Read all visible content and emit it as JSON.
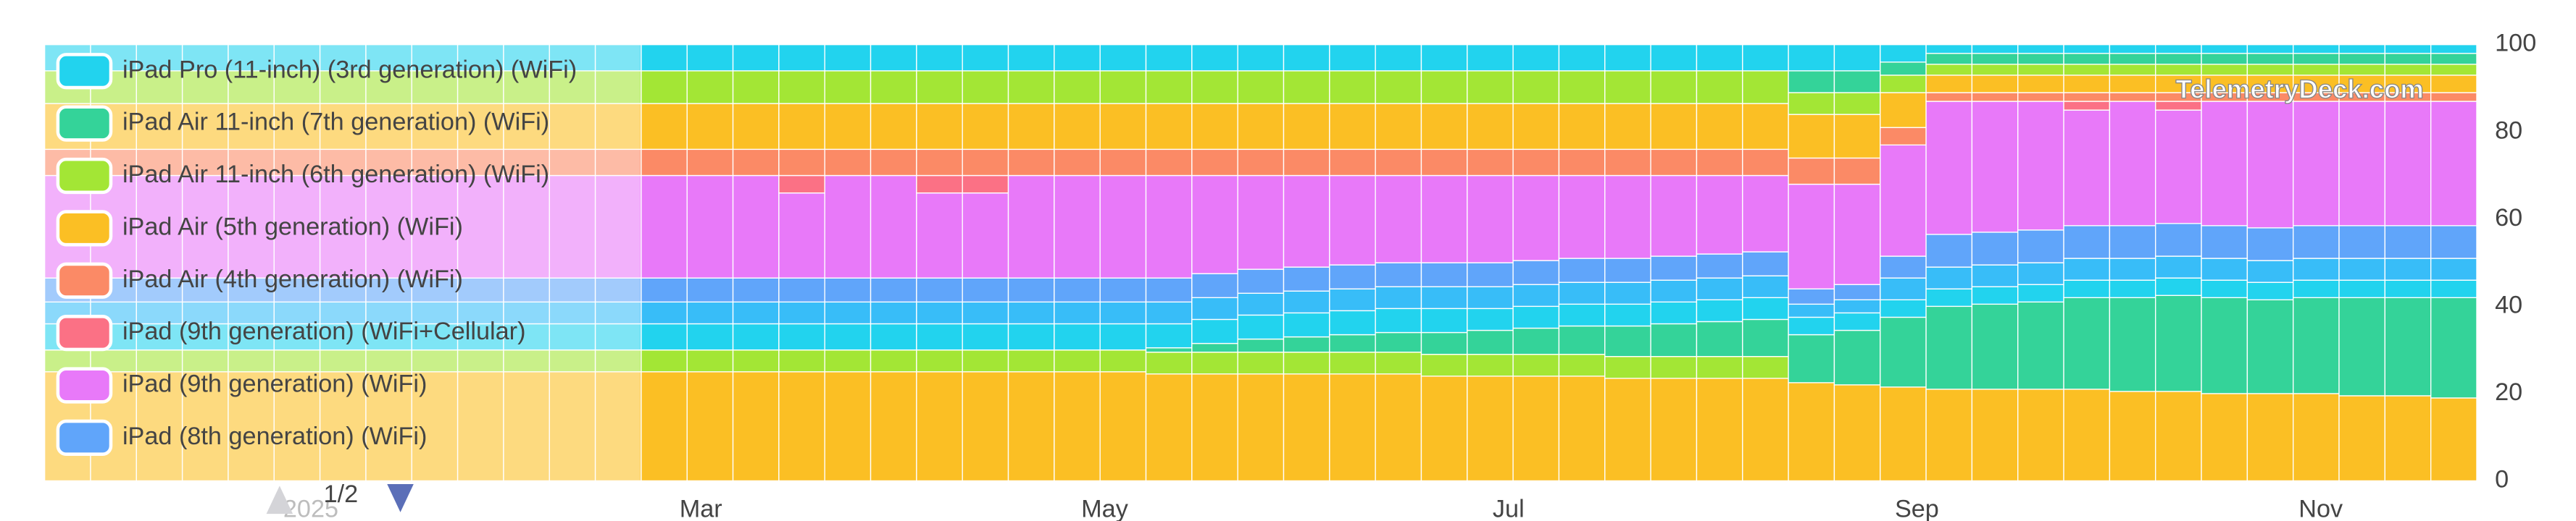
{
  "chart_data": {
    "type": "stacked_bar",
    "categories": [
      null,
      null,
      null,
      null,
      null,
      null,
      null,
      null,
      null,
      null,
      null,
      null,
      null,
      null,
      null,
      null,
      null,
      null,
      null,
      null,
      null,
      null,
      null,
      null,
      null,
      null,
      null,
      null,
      null,
      null,
      null,
      null,
      null,
      null,
      null,
      null,
      null,
      null,
      null,
      null,
      null,
      null,
      null,
      null,
      null,
      null,
      null,
      null,
      null,
      null,
      null,
      null,
      null
    ],
    "xlim": [
      0,
      53
    ],
    "xticks": [
      {
        "value": 5.8,
        "label": "2025"
      },
      {
        "value": 14.3,
        "label": "Mar"
      },
      {
        "value": 23.1,
        "label": "May"
      },
      {
        "value": 31.9,
        "label": "Jul"
      },
      {
        "value": 40.8,
        "label": "Sep"
      },
      {
        "value": 49.6,
        "label": "Nov"
      }
    ],
    "ylim": [
      0,
      100
    ],
    "yticks": [
      0,
      20,
      40,
      60,
      80,
      100
    ],
    "legend_page": "1/2",
    "watermark": "TelemetryDeck.com",
    "series": [
      {
        "name": "iPad Pro (11-inch) (3rd generation) (WiFi)",
        "color": "#22d3ee",
        "values": [
          6,
          6,
          6,
          6,
          6,
          6,
          6,
          6,
          6,
          6,
          6,
          6,
          6,
          6,
          6,
          6,
          6,
          6,
          6,
          6,
          6,
          6,
          6,
          6,
          6,
          6,
          6,
          6,
          6,
          6,
          6,
          6,
          6,
          6,
          6,
          6,
          6,
          6,
          6,
          6,
          4,
          2,
          2,
          2,
          2,
          2,
          2,
          2,
          2,
          2,
          2,
          2,
          2
        ]
      },
      {
        "name": "iPad Air 11-inch (7th generation) (WiFi)",
        "color": "#34d399",
        "values": [
          0,
          0,
          0,
          0,
          0,
          0,
          0,
          0,
          0,
          0,
          0,
          0,
          0,
          0,
          0,
          0,
          0,
          0,
          0,
          0,
          0,
          0,
          0,
          0,
          0,
          0,
          0,
          0,
          0,
          0,
          0,
          0,
          0,
          0,
          0,
          0,
          0,
          0,
          5,
          5,
          3,
          2.5,
          2.5,
          2.5,
          2.5,
          2.5,
          2.5,
          2.5,
          2.5,
          2.5,
          2.5,
          2.5,
          2.5
        ]
      },
      {
        "name": "iPad Air 11-inch (6th generation) (WiFi)",
        "color": "#a3e635",
        "values": [
          7.5,
          7.5,
          7.5,
          7.5,
          7.5,
          7.5,
          7.5,
          7.5,
          7.5,
          7.5,
          7.5,
          7.5,
          7.5,
          7.5,
          7.5,
          7.5,
          7.5,
          7.5,
          7.5,
          7.5,
          7.5,
          7.5,
          7.5,
          7.5,
          7.5,
          7.5,
          7.5,
          7.5,
          7.5,
          7.5,
          7.5,
          7.5,
          7.5,
          7.5,
          7.5,
          7.5,
          7.5,
          7.5,
          5,
          5,
          4,
          2.5,
          2.5,
          2.5,
          2.5,
          2.5,
          2.5,
          2.5,
          2.5,
          2.5,
          2.5,
          2.5,
          2.5
        ]
      },
      {
        "name": "iPad Air (5th generation) (WiFi)",
        "color": "#fbbf24",
        "values": [
          10.5,
          10.5,
          10.5,
          10.5,
          10.5,
          10.5,
          10.5,
          10.5,
          10.5,
          10.5,
          10.5,
          10.5,
          10.5,
          10.5,
          10.5,
          10.5,
          10.5,
          10.5,
          10.5,
          10.5,
          10.5,
          10.5,
          10.5,
          10.5,
          10.5,
          10.5,
          10.5,
          10.5,
          10.5,
          10.5,
          10.5,
          10.5,
          10.5,
          10.5,
          10.5,
          10.5,
          10.5,
          10.5,
          10,
          10,
          8,
          4,
          4,
          4,
          4,
          4,
          4,
          4,
          4,
          4,
          4,
          4,
          4
        ]
      },
      {
        "name": "iPad Air (4th generation) (WiFi)",
        "color": "#fb8a66",
        "values": [
          6,
          6,
          6,
          6,
          6,
          6,
          6,
          6,
          6,
          6,
          6,
          6,
          6,
          6,
          6,
          6,
          6,
          6,
          6,
          6,
          6,
          6,
          6,
          6,
          6,
          6,
          6,
          6,
          6,
          6,
          6,
          6,
          6,
          6,
          6,
          6,
          6,
          6,
          6,
          6,
          4,
          2,
          2,
          2,
          2,
          2,
          2,
          2,
          2,
          2,
          2,
          2,
          2
        ]
      },
      {
        "name": "iPad (9th generation) (WiFi+Cellular)",
        "color": "#fb7185",
        "values": [
          0,
          0,
          0,
          0,
          0,
          0,
          0,
          0,
          0,
          0,
          0,
          0,
          0,
          0,
          0,
          0,
          4,
          0,
          0,
          4,
          4,
          0,
          0,
          0,
          0,
          0,
          0,
          0,
          0,
          0,
          0,
          0,
          0,
          0,
          0,
          0,
          0,
          0,
          0,
          0,
          0,
          0,
          0,
          0,
          2,
          0,
          2,
          0,
          0,
          0,
          0,
          0,
          0
        ]
      },
      {
        "name": "iPad (9th generation) (WiFi)",
        "color": "#e879f9",
        "values": [
          23.5,
          23.5,
          23.5,
          23.5,
          23.5,
          23.5,
          23.5,
          23.5,
          23.5,
          23.5,
          23.5,
          23.5,
          23.5,
          23.5,
          23.5,
          23.5,
          19.5,
          23.5,
          23.5,
          19.5,
          19.5,
          23.5,
          23.5,
          23.5,
          23.5,
          22.5,
          21.5,
          21,
          20.5,
          20,
          20,
          20,
          19.5,
          19,
          19,
          18.5,
          18,
          17.5,
          24,
          23,
          25.5,
          30.5,
          30,
          29.5,
          26.5,
          28.5,
          26,
          28.5,
          29,
          28.5,
          28.5,
          28.5,
          28.5
        ]
      },
      {
        "name": "iPad (8th generation) (WiFi)",
        "color": "#60a5fa",
        "values": [
          5.5,
          5.5,
          5.5,
          5.5,
          5.5,
          5.5,
          5.5,
          5.5,
          5.5,
          5.5,
          5.5,
          5.5,
          5.5,
          5.5,
          5.5,
          5.5,
          5.5,
          5.5,
          5.5,
          5.5,
          5.5,
          5.5,
          5.5,
          5.5,
          5.5,
          5.5,
          5.5,
          5.5,
          5.5,
          5.5,
          5.5,
          5.5,
          5.5,
          5.5,
          5.5,
          5.5,
          5.5,
          5.5,
          3.5,
          3.5,
          5,
          7.5,
          7.5,
          7.5,
          7.5,
          7.5,
          7.5,
          7.5,
          7.5,
          7.5,
          7.5,
          7.5,
          7.5
        ]
      },
      {
        "color": "#38bdf8",
        "values": [
          5,
          5,
          5,
          5,
          5,
          5,
          5,
          5,
          5,
          5,
          5,
          5,
          5,
          5,
          5,
          5,
          5,
          5,
          5,
          5,
          5,
          5,
          5,
          5,
          5,
          5,
          5,
          5,
          5,
          5,
          5,
          5,
          5,
          5,
          5,
          5,
          5,
          5,
          3,
          3,
          5,
          5,
          5,
          5,
          5,
          5,
          5,
          5,
          5,
          5,
          5,
          5,
          5
        ]
      },
      {
        "color": "#22d3ee",
        "values": [
          6,
          6,
          6,
          6,
          6,
          6,
          6,
          6,
          6,
          6,
          6,
          6,
          6,
          6,
          6,
          6,
          6,
          6,
          6,
          6,
          6,
          6,
          6,
          6,
          5.5,
          5.5,
          5.5,
          5.5,
          5.5,
          5.5,
          5.5,
          5,
          5,
          5,
          5,
          5,
          5,
          5,
          4,
          4,
          4,
          4,
          4,
          4,
          4,
          4,
          4,
          4,
          4,
          4,
          4,
          4,
          4
        ]
      },
      {
        "color": "#34d399",
        "values": [
          0,
          0,
          0,
          0,
          0,
          0,
          0,
          0,
          0,
          0,
          0,
          0,
          0,
          0,
          0,
          0,
          0,
          0,
          0,
          0,
          0,
          0,
          0,
          0,
          1,
          2,
          3,
          3.5,
          4,
          4.5,
          5,
          5.5,
          6,
          6.5,
          7,
          7.5,
          8,
          8.5,
          11,
          12.5,
          16,
          19,
          19.5,
          20,
          21,
          21.5,
          22,
          22,
          21.5,
          22,
          22.5,
          22.5,
          23
        ]
      },
      {
        "color": "#a3e635",
        "values": [
          5,
          5,
          5,
          5,
          5,
          5,
          5,
          5,
          5,
          5,
          5,
          5,
          5,
          5,
          5,
          5,
          5,
          5,
          5,
          5,
          5,
          5,
          5,
          5,
          5,
          5,
          5,
          5,
          5,
          5,
          5,
          5,
          5,
          5,
          5,
          5,
          5,
          5,
          0,
          0,
          0,
          0,
          0,
          0,
          0,
          0,
          0,
          0,
          0,
          0,
          0,
          0,
          0
        ]
      },
      {
        "color": "#fbbf24",
        "values": [
          25,
          25,
          25,
          25,
          25,
          25,
          25,
          25,
          25,
          25,
          25,
          25,
          25,
          25,
          25,
          25,
          25,
          25,
          25,
          25,
          25,
          25,
          25,
          25,
          24.5,
          24.5,
          24.5,
          24.5,
          24.5,
          24.5,
          24,
          24,
          24,
          24,
          23.5,
          23.5,
          23.5,
          23.5,
          22.5,
          22,
          21.5,
          21,
          21,
          21,
          21,
          20.5,
          20.5,
          20,
          20,
          20,
          19.5,
          19.5,
          19
        ]
      }
    ]
  }
}
